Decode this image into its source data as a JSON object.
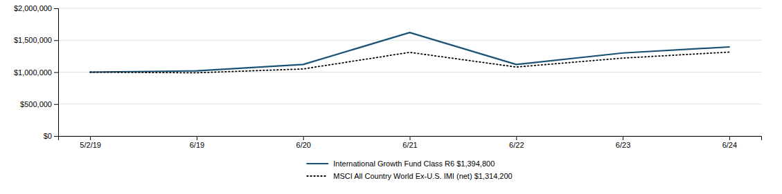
{
  "chart_data": {
    "type": "line",
    "categories": [
      "5/2/19",
      "6/19",
      "6/20",
      "6/21",
      "6/22",
      "6/23",
      "6/24"
    ],
    "series": [
      {
        "name": "International Growth Fund Class R6 $1,394,800",
        "color": "#1a5276",
        "line_style": "solid",
        "values": [
          1000000,
          1020000,
          1120000,
          1620000,
          1120000,
          1300000,
          1394800
        ]
      },
      {
        "name": "MSCI All Country World Ex-U.S. IMI (net) $1,314,200",
        "color": "#000000",
        "line_style": "dotted",
        "values": [
          1000000,
          990000,
          1050000,
          1310000,
          1080000,
          1220000,
          1314200
        ]
      }
    ],
    "ylim": [
      0,
      2000000
    ],
    "yticks": [
      {
        "value": 0,
        "label": "$0"
      },
      {
        "value": 500000,
        "label": "$500,000"
      },
      {
        "value": 1000000,
        "label": "$1,000,000"
      },
      {
        "value": 1500000,
        "label": "$1,500,000"
      },
      {
        "value": 2000000,
        "label": "$2,000,000"
      }
    ],
    "grid": true,
    "legend": "bottom"
  }
}
